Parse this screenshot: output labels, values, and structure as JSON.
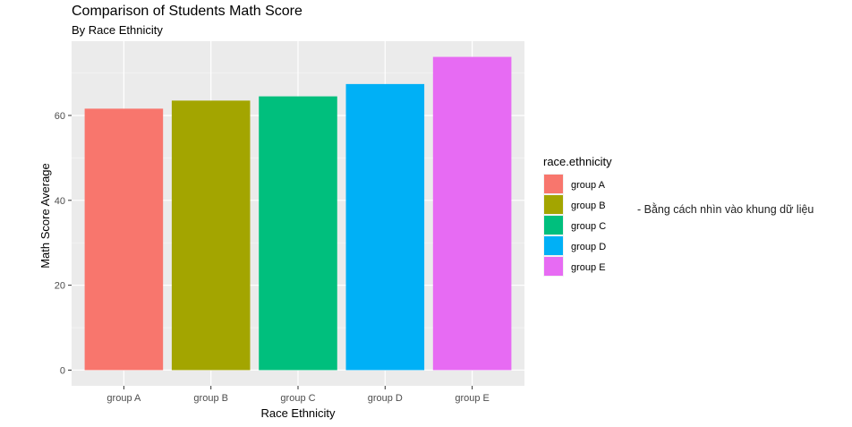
{
  "chart_data": {
    "type": "bar",
    "title": "Comparison of Students Math Score",
    "subtitle": "By Race Ethnicity",
    "xlabel": "Race Ethnicity",
    "ylabel": "Math Score Average",
    "categories": [
      "group A",
      "group B",
      "group C",
      "group D",
      "group E"
    ],
    "values": [
      61.6,
      63.5,
      64.5,
      67.4,
      73.8
    ],
    "colors": [
      "#F8766D",
      "#A3A500",
      "#00BF7D",
      "#00B0F6",
      "#E76BF3"
    ],
    "ylim": [
      -3.7,
      77.5
    ],
    "yticks": [
      "0",
      "20",
      "40",
      "60"
    ],
    "ytick_values": [
      0,
      20,
      40,
      60
    ],
    "grid": true,
    "legend": {
      "title": "race.ethnicity",
      "position": "right",
      "items": [
        "group A",
        "group B",
        "group C",
        "group D",
        "group E"
      ]
    }
  },
  "annotation": "- Bằng cách nhìn vào khung dữ liệu",
  "theme": {
    "panel_bg": "#EBEBEB",
    "grid_major": "#FFFFFF",
    "text": "#000000",
    "axis_text": "#4D4D4D"
  }
}
